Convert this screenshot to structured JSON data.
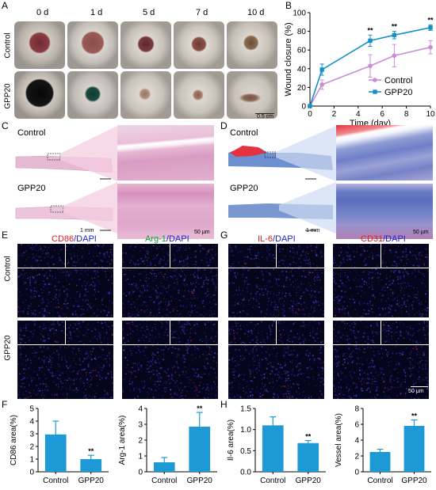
{
  "panels": {
    "A": {
      "letter": "A",
      "days": [
        "0 d",
        "1 d",
        "5 d",
        "7 d",
        "10 d"
      ],
      "rows": [
        "Control",
        "GPP20"
      ],
      "scalebar": "0.5 cm"
    },
    "B": {
      "letter": "B"
    },
    "C": {
      "letter": "C",
      "rows": [
        "Control",
        "GPP20"
      ],
      "scale_left": "1 mm",
      "scale_right": "50 µm"
    },
    "D": {
      "letter": "D",
      "rows": [
        "Control",
        "GPP20"
      ],
      "scale_left": "1 mm",
      "scale_right": "50 µm"
    },
    "E": {
      "letter": "E",
      "rows": [
        "Control",
        "GPP20"
      ],
      "stain1_a": "CD86",
      "stain1_b": "/DAPI",
      "stain2_a": "Arg-1",
      "stain2_b": "/DAPI"
    },
    "G": {
      "letter": "G",
      "stain1_a": "IL-6",
      "stain1_b": "/DAPI",
      "stain2_a": "CD31",
      "stain2_b": "/DAPI",
      "scalebar": "50 µm"
    },
    "F": {
      "letter": "F"
    },
    "H": {
      "letter": "H"
    }
  },
  "colors": {
    "control": "#c98dd6",
    "gpp20": "#1590c6",
    "bar": "#1d9ad6",
    "he_pink": "#e6b9d2",
    "masson_blue": "#6d8ed0",
    "masson_red": "#e5323e"
  },
  "chart_data": [
    {
      "id": "B",
      "type": "line",
      "xlabel": "Time (day)",
      "ylabel": "Wound closure (%)",
      "xlim": [
        0,
        10
      ],
      "ylim": [
        0,
        100
      ],
      "xticks": [
        0,
        2,
        4,
        6,
        8,
        10
      ],
      "yticks": [
        0,
        20,
        40,
        60,
        80,
        100
      ],
      "legend_placement": "lower-right",
      "series": [
        {
          "name": "Control",
          "x": [
            0,
            1,
            5,
            7,
            10
          ],
          "y": [
            0,
            23,
            43,
            54,
            63
          ],
          "err": [
            0,
            5,
            12,
            12,
            7
          ]
        },
        {
          "name": "GPP20",
          "x": [
            0,
            1,
            5,
            7,
            10
          ],
          "y": [
            0,
            39,
            70,
            76,
            84
          ],
          "err": [
            0,
            6,
            6,
            4,
            3
          ]
        }
      ],
      "annotations": [
        {
          "x": 5,
          "text": "**"
        },
        {
          "x": 7,
          "text": "**"
        },
        {
          "x": 10,
          "text": "**"
        }
      ]
    },
    {
      "id": "F1",
      "type": "bar",
      "ylabel": "CD86 area(%)",
      "categories": [
        "Control",
        "GPP20"
      ],
      "values": [
        2.95,
        1.0
      ],
      "errors": [
        1.05,
        0.3
      ],
      "ylim": [
        0,
        5
      ],
      "yticks": [
        0,
        1,
        2,
        3,
        4,
        5
      ],
      "sig": "**"
    },
    {
      "id": "F2",
      "type": "bar",
      "ylabel": "Arg-1 area(%)",
      "categories": [
        "Control",
        "GPP20"
      ],
      "values": [
        0.6,
        2.85
      ],
      "errors": [
        0.3,
        0.9
      ],
      "ylim": [
        0,
        4
      ],
      "yticks": [
        0,
        1,
        2,
        3,
        4
      ],
      "sig": "**"
    },
    {
      "id": "H1",
      "type": "bar",
      "ylabel": "Il-6 area(%)",
      "categories": [
        "Control",
        "GPP20"
      ],
      "values": [
        1.1,
        0.68
      ],
      "errors": [
        0.2,
        0.06
      ],
      "ylim": [
        0,
        1.5
      ],
      "yticks": [
        0.0,
        0.5,
        1.0,
        1.5
      ],
      "sig": "**"
    },
    {
      "id": "H2",
      "type": "bar",
      "ylabel": "Vessel area(%)",
      "categories": [
        "Control",
        "GPP20"
      ],
      "values": [
        2.5,
        5.8
      ],
      "errors": [
        0.35,
        0.75
      ],
      "ylim": [
        0,
        8
      ],
      "yticks": [
        0,
        2,
        4,
        6,
        8
      ],
      "sig": "**"
    }
  ]
}
